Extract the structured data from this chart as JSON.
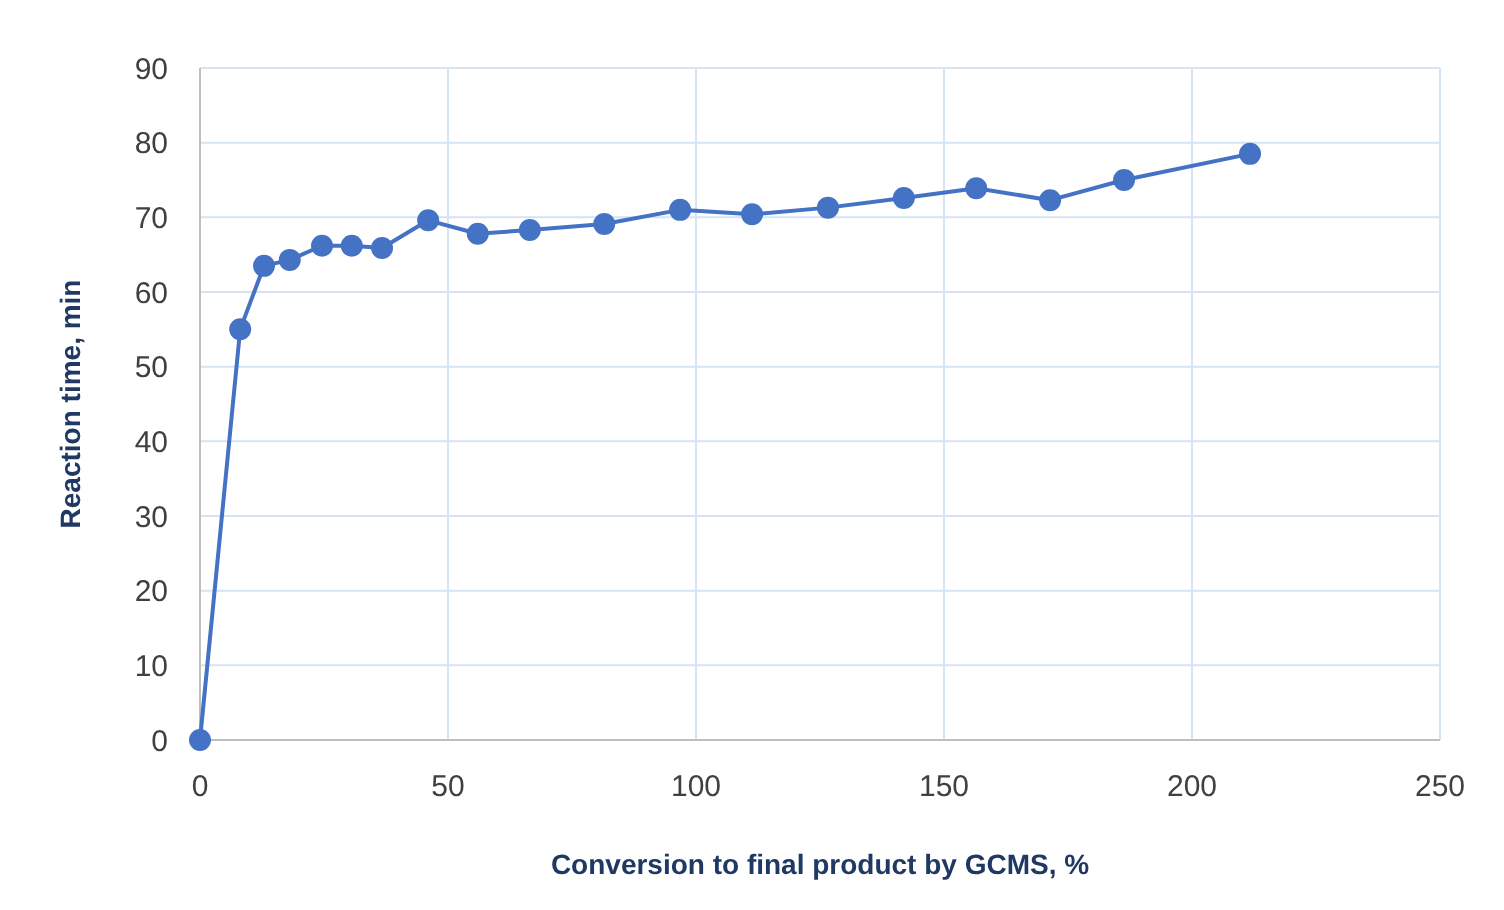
{
  "chart_data": {
    "type": "line",
    "xlabel": "Conversion to final product by GCMS, %",
    "ylabel": "Reaction time, min",
    "x": [
      0,
      8.1,
      12.9,
      18.1,
      24.6,
      30.6,
      36.7,
      46,
      56,
      66.5,
      81.5,
      96.8,
      111.3,
      126.6,
      141.9,
      156.5,
      171.4,
      186.3,
      211.7
    ],
    "series": [
      {
        "color": "#4472c4",
        "values": [
          0,
          55,
          63.5,
          64.3,
          66.2,
          66.2,
          65.9,
          69.6,
          67.8,
          68.3,
          69.1,
          71,
          70.4,
          71.3,
          72.6,
          73.9,
          72.3,
          75,
          78.5
        ]
      }
    ],
    "xlim": [
      0,
      250
    ],
    "xticks": [
      0,
      50,
      100,
      150,
      200,
      250
    ],
    "ylim": [
      0,
      90
    ],
    "yticks": [
      0,
      10,
      20,
      30,
      40,
      50,
      60,
      70,
      80,
      90
    ],
    "grid": true,
    "marker": "circle",
    "line_style": "solid"
  }
}
